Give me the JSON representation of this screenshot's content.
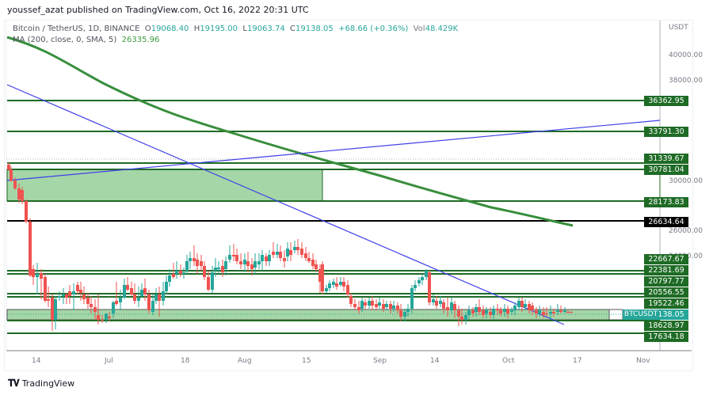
{
  "header": {
    "published": "youssef_azat published on TradingView.com, Oct 16, 2022 20:31 UTC"
  },
  "legend": {
    "symbol": "Bitcoin / TetherUS, 1D, BINANCE",
    "open_label": "O",
    "open": "19068.40",
    "high_label": "H",
    "high": "19195.00",
    "low_label": "L",
    "low": "19063.74",
    "close_label": "C",
    "close": "19138.05",
    "change": "+68.66 (+0.36%)",
    "vol_label": "Vol",
    "vol": "48.429K",
    "ma_label": "MA (200, close, 0, SMA, 5)",
    "ma_value": "26335.96"
  },
  "price_axis": {
    "currency": "USDT",
    "ticks": [
      "40000.00",
      "38000.00",
      "30000.00",
      "26000.00",
      "24000.00"
    ],
    "level_tags": [
      {
        "value": "36362.95",
        "style": "green"
      },
      {
        "value": "33791.30",
        "style": "green"
      },
      {
        "value": "31339.67",
        "style": "green"
      },
      {
        "value": "30781.04",
        "style": "green"
      },
      {
        "value": "28173.83",
        "style": "green"
      },
      {
        "value": "26634.64",
        "style": "black"
      },
      {
        "value": "22667.67",
        "style": "green"
      },
      {
        "value": "22381.69",
        "style": "green"
      },
      {
        "value": "20797.77",
        "style": "green"
      },
      {
        "value": "20556.55",
        "style": "green"
      },
      {
        "value": "19522.46",
        "style": "green"
      },
      {
        "value": "19138.05",
        "style": "teal"
      },
      {
        "value": "18628.97",
        "style": "green"
      },
      {
        "value": "17634.18",
        "style": "green"
      }
    ],
    "symbol_tag": "BTCUSDT"
  },
  "time_axis": {
    "ticks": [
      "14",
      "Jul",
      "18",
      "Aug",
      "15",
      "Sep",
      "14",
      "Oct",
      "17",
      "Nov"
    ]
  },
  "footer": {
    "brand": "TradingView"
  },
  "colors": {
    "up": "#26a69a",
    "down": "#ef5350",
    "level_line": "#1e6b25",
    "zone_fill": "#a5d6a7",
    "trendline": "#3f3fe8",
    "ma": "#388e3c"
  },
  "chart_data": {
    "type": "candlestick",
    "title": "Bitcoin / TetherUS, 1D, BINANCE",
    "ylabel": "USDT",
    "ylim": [
      17000,
      41500
    ],
    "x_ticks": [
      "14",
      "Jul",
      "18",
      "Aug",
      "15",
      "Sep",
      "14",
      "Oct",
      "17",
      "Nov"
    ],
    "last": {
      "open": 19068.4,
      "high": 19195.0,
      "low": 19063.74,
      "close": 19138.05,
      "change": 68.66,
      "change_pct": 0.36,
      "volume": "48.429K"
    },
    "indicators": [
      {
        "name": "MA (200, close, 0, SMA, 5)",
        "value": 26335.96
      }
    ],
    "horizontal_levels": [
      36362.95,
      33791.3,
      31339.67,
      30781.04,
      28173.83,
      26634.64,
      22667.67,
      22381.69,
      20797.77,
      20556.55,
      19522.46,
      18628.97,
      17634.18
    ],
    "zones": [
      {
        "from": 28173.83,
        "to": 30781.04,
        "x_range": [
          "Jun 11",
          "Aug 20"
        ]
      },
      {
        "from": 18628.97,
        "to": 19522.46,
        "x_range": [
          "Jun 11",
          "Oct 16"
        ]
      }
    ],
    "trendlines": [
      {
        "name": "descending",
        "from": [
          "Jun 11",
          38800
        ],
        "to": [
          "Oct 20",
          18400
        ]
      },
      {
        "name": "ascending",
        "from": [
          "Jun 11",
          30100
        ],
        "to": [
          "Nov 12",
          33400
        ]
      }
    ]
  }
}
